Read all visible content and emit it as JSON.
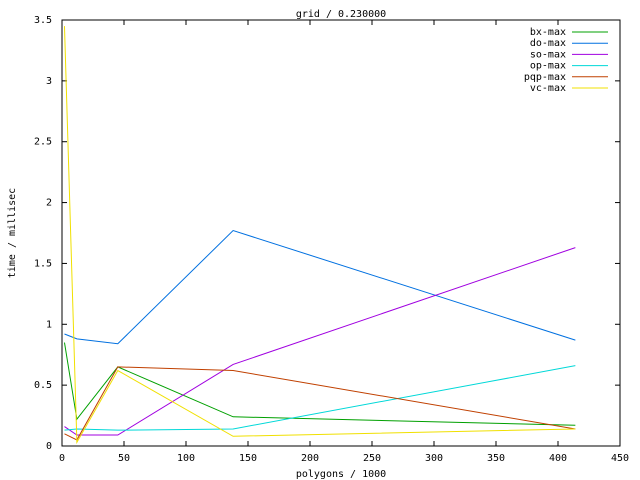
{
  "chart_data": {
    "type": "line",
    "title": "grid / 0.230000",
    "x_label": "polygons / 1000",
    "y_label": "time / millisec",
    "x": [
      2,
      12,
      45,
      138,
      414
    ],
    "series": [
      {
        "name": "bx-max",
        "color": "#00a000",
        "values": [
          0.85,
          0.22,
          0.65,
          0.24,
          0.17
        ]
      },
      {
        "name": "do-max",
        "color": "#0070e0",
        "values": [
          0.92,
          0.88,
          0.84,
          1.77,
          0.87
        ]
      },
      {
        "name": "so-max",
        "color": "#a000e0",
        "values": [
          0.16,
          0.09,
          0.09,
          0.67,
          1.63
        ]
      },
      {
        "name": "op-max",
        "color": "#00d8d8",
        "values": [
          0.13,
          0.14,
          0.13,
          0.14,
          0.66
        ]
      },
      {
        "name": "pqp-max",
        "color": "#c04000",
        "values": [
          0.1,
          0.05,
          0.65,
          0.62,
          0.14
        ]
      },
      {
        "name": "vc-max",
        "color": "#f0e000",
        "values": [
          3.45,
          0.03,
          0.62,
          0.08,
          0.14
        ]
      }
    ],
    "xlim": [
      0,
      450
    ],
    "xticks": [
      0,
      50,
      100,
      150,
      200,
      250,
      300,
      350,
      400,
      450
    ],
    "ylim": [
      0,
      3.5
    ],
    "yticks": [
      0,
      0.5,
      1,
      1.5,
      2,
      2.5,
      3,
      3.5
    ],
    "legend": "top-right"
  }
}
